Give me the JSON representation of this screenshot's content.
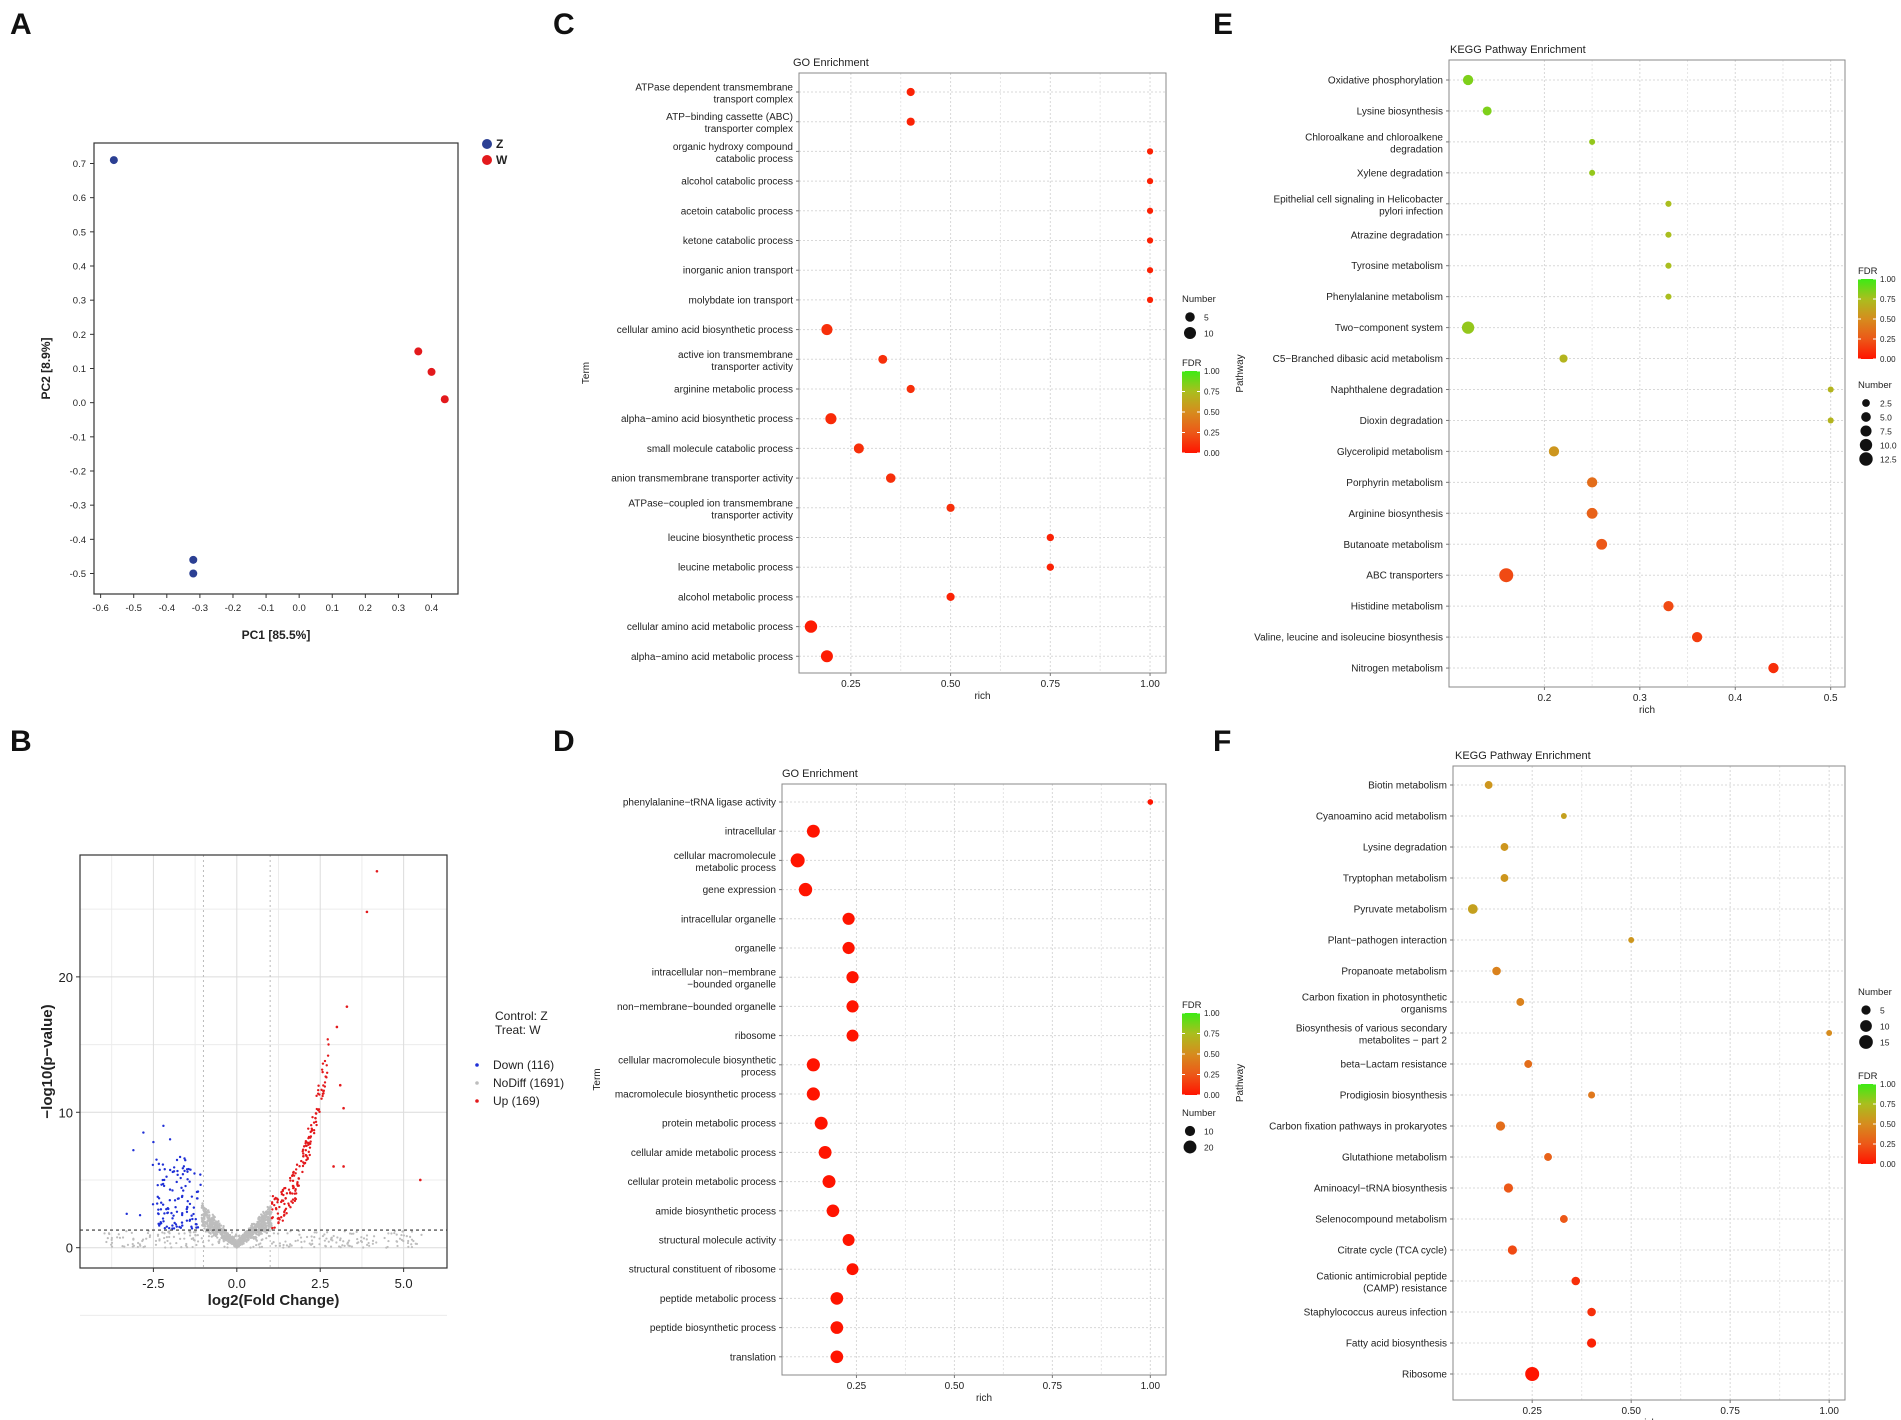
{
  "panels": {
    "A": "A",
    "B": "B",
    "C": "C",
    "D": "D",
    "E": "E",
    "F": "F"
  },
  "chart_data": [
    {
      "id": "A",
      "type": "scatter",
      "title": "",
      "xlabel": "PC1 [85.5%]",
      "ylabel": "PC2 [8.9%]",
      "xlim": [
        -0.62,
        0.48
      ],
      "ylim": [
        -0.56,
        0.76
      ],
      "xticks": [
        -0.6,
        -0.5,
        -0.4,
        -0.3,
        -0.2,
        -0.1,
        0.0,
        0.1,
        0.2,
        0.3,
        0.4
      ],
      "xtick_labels": [
        "-0.6",
        "-0.5",
        "-0.4",
        "-0.3",
        "-0.2",
        "-0.1",
        "0.0",
        "0.1",
        "0.2",
        "0.3",
        "0.4"
      ],
      "yticks": [
        -0.5,
        -0.4,
        -0.3,
        -0.2,
        -0.1,
        0.0,
        0.1,
        0.2,
        0.3,
        0.4,
        0.5,
        0.6,
        0.7
      ],
      "ytick_labels": [
        "-0.5",
        "-0.4",
        "-0.3",
        "-0.2",
        "-0.1",
        "0.0",
        "0.1",
        "0.2",
        "0.3",
        "0.4",
        "0.5",
        "0.6",
        "0.7"
      ],
      "legend": [
        {
          "name": "Z",
          "color": "#2b3f93"
        },
        {
          "name": "W",
          "color": "#e3191c"
        }
      ],
      "series": [
        {
          "name": "Z",
          "color": "#2b3f93",
          "points": [
            [
              -0.56,
              0.71
            ],
            [
              -0.32,
              -0.46
            ],
            [
              -0.32,
              -0.5
            ]
          ]
        },
        {
          "name": "W",
          "color": "#e3191c",
          "points": [
            [
              0.36,
              0.15
            ],
            [
              0.4,
              0.09
            ],
            [
              0.44,
              0.01
            ]
          ]
        }
      ]
    },
    {
      "id": "B",
      "type": "scatter",
      "subtype": "volcano",
      "title": "",
      "xlabel": "log2(Fold Change)",
      "ylabel": "−log10(p−value)",
      "xlim": [
        -4.7,
        6.3
      ],
      "ylim": [
        -1.5,
        29
      ],
      "xticks": [
        -2.5,
        0.0,
        2.5,
        5.0
      ],
      "xtick_labels": [
        "-2.5",
        "0.0",
        "2.5",
        "5.0"
      ],
      "yticks": [
        0,
        10,
        20
      ],
      "ytick_labels": [
        "0",
        "10",
        "20"
      ],
      "threshold_y": 1.3,
      "legend_header": [
        "Control: Z",
        "Treat:   W"
      ],
      "legend": [
        {
          "name": "Down (116)",
          "color": "#1f2fd6"
        },
        {
          "name": "NoDiff (1691)",
          "color": "#bdbdbd"
        },
        {
          "name": "Up (169)",
          "color": "#e3191c"
        }
      ]
    },
    {
      "id": "C",
      "type": "scatter",
      "subtype": "dotplot",
      "title": "GO Enrichment",
      "xlabel": "rich",
      "ylabel": "Term",
      "xlim": [
        0.12,
        1.04
      ],
      "xticks": [
        0.25,
        0.5,
        0.75,
        1.0
      ],
      "xtick_labels": [
        "0.25",
        "0.50",
        "0.75",
        "1.00"
      ],
      "size_legend_title": "Number",
      "size_legend": [
        {
          "label": "5",
          "value": 5
        },
        {
          "label": "10",
          "value": 10
        }
      ],
      "color_legend_title": "FDR",
      "color_legend_labels": [
        "1.00",
        "0.75",
        "0.50",
        "0.25",
        "0.00"
      ],
      "terms": [
        {
          "label": [
            "ATPase dependent transmembrane",
            "transport complex"
          ],
          "rich": 0.4,
          "number": 3,
          "fdr": 0.05
        },
        {
          "label": [
            "ATP−binding cassette (ABC)",
            "transporter complex"
          ],
          "rich": 0.4,
          "number": 3,
          "fdr": 0.05
        },
        {
          "label": [
            "organic hydroxy compound",
            "catabolic process"
          ],
          "rich": 1.0,
          "number": 1,
          "fdr": 0.05
        },
        {
          "label": [
            "alcohol catabolic process"
          ],
          "rich": 1.0,
          "number": 1,
          "fdr": 0.05
        },
        {
          "label": [
            "acetoin catabolic process"
          ],
          "rich": 1.0,
          "number": 1,
          "fdr": 0.05
        },
        {
          "label": [
            "ketone catabolic process"
          ],
          "rich": 1.0,
          "number": 1,
          "fdr": 0.05
        },
        {
          "label": [
            "inorganic anion transport"
          ],
          "rich": 1.0,
          "number": 1,
          "fdr": 0.05
        },
        {
          "label": [
            "molybdate ion transport"
          ],
          "rich": 1.0,
          "number": 1,
          "fdr": 0.05
        },
        {
          "label": [
            "cellular amino acid biosynthetic process"
          ],
          "rich": 0.19,
          "number": 8,
          "fdr": 0.1
        },
        {
          "label": [
            "active ion transmembrane",
            "transporter activity"
          ],
          "rich": 0.33,
          "number": 4,
          "fdr": 0.1
        },
        {
          "label": [
            "arginine metabolic process"
          ],
          "rich": 0.4,
          "number": 3,
          "fdr": 0.1
        },
        {
          "label": [
            "alpha−amino acid biosynthetic process"
          ],
          "rich": 0.2,
          "number": 8,
          "fdr": 0.08
        },
        {
          "label": [
            "small molecule catabolic process"
          ],
          "rich": 0.27,
          "number": 6,
          "fdr": 0.1
        },
        {
          "label": [
            "anion transmembrane transporter activity"
          ],
          "rich": 0.35,
          "number": 5,
          "fdr": 0.1
        },
        {
          "label": [
            "ATPase−coupled ion transmembrane",
            "transporter activity"
          ],
          "rich": 0.5,
          "number": 3,
          "fdr": 0.1
        },
        {
          "label": [
            "leucine biosynthetic process"
          ],
          "rich": 0.75,
          "number": 2,
          "fdr": 0.05
        },
        {
          "label": [
            "leucine metabolic process"
          ],
          "rich": 0.75,
          "number": 2,
          "fdr": 0.05
        },
        {
          "label": [
            "alcohol metabolic process"
          ],
          "rich": 0.5,
          "number": 3,
          "fdr": 0.05
        },
        {
          "label": [
            "cellular amino acid metabolic process"
          ],
          "rich": 0.15,
          "number": 11,
          "fdr": 0.03
        },
        {
          "label": [
            "alpha−amino acid metabolic process"
          ],
          "rich": 0.19,
          "number": 10,
          "fdr": 0.03
        }
      ]
    },
    {
      "id": "D",
      "type": "scatter",
      "subtype": "dotplot",
      "title": "GO Enrichment",
      "xlabel": "rich",
      "ylabel": "Term",
      "xlim": [
        0.06,
        1.04
      ],
      "xticks": [
        0.25,
        0.5,
        0.75,
        1.0
      ],
      "xtick_labels": [
        "0.25",
        "0.50",
        "0.75",
        "1.00"
      ],
      "size_legend_title": "Number",
      "size_legend": [
        {
          "label": "10",
          "value": 10
        },
        {
          "label": "20",
          "value": 20
        }
      ],
      "color_legend_title": "FDR",
      "color_legend_labels": [
        "1.00",
        "0.75",
        "0.50",
        "0.25",
        "0.00"
      ],
      "terms": [
        {
          "label": [
            "phenylalanine−tRNA ligase activity"
          ],
          "rich": 1.0,
          "number": 1,
          "fdr": 0.0
        },
        {
          "label": [
            "intracellular"
          ],
          "rich": 0.14,
          "number": 20,
          "fdr": 0.0
        },
        {
          "label": [
            "cellular macromolecule",
            "metabolic process"
          ],
          "rich": 0.1,
          "number": 25,
          "fdr": 0.0
        },
        {
          "label": [
            "gene expression"
          ],
          "rich": 0.12,
          "number": 22,
          "fdr": 0.0
        },
        {
          "label": [
            "intracellular organelle"
          ],
          "rich": 0.23,
          "number": 17,
          "fdr": 0.0
        },
        {
          "label": [
            "organelle"
          ],
          "rich": 0.23,
          "number": 17,
          "fdr": 0.0
        },
        {
          "label": [
            "intracellular non−membrane",
            "−bounded organelle"
          ],
          "rich": 0.24,
          "number": 17,
          "fdr": 0.0
        },
        {
          "label": [
            "non−membrane−bounded organelle"
          ],
          "rich": 0.24,
          "number": 17,
          "fdr": 0.0
        },
        {
          "label": [
            "ribosome"
          ],
          "rich": 0.24,
          "number": 16,
          "fdr": 0.0
        },
        {
          "label": [
            "cellular macromolecule biosynthetic",
            "process"
          ],
          "rich": 0.14,
          "number": 21,
          "fdr": 0.0
        },
        {
          "label": [
            "macromolecule biosynthetic process"
          ],
          "rich": 0.14,
          "number": 21,
          "fdr": 0.0
        },
        {
          "label": [
            "protein metabolic process"
          ],
          "rich": 0.16,
          "number": 20,
          "fdr": 0.0
        },
        {
          "label": [
            "cellular amide metabolic process"
          ],
          "rich": 0.17,
          "number": 20,
          "fdr": 0.0
        },
        {
          "label": [
            "cellular protein metabolic process"
          ],
          "rich": 0.18,
          "number": 20,
          "fdr": 0.0
        },
        {
          "label": [
            "amide biosynthetic process"
          ],
          "rich": 0.19,
          "number": 19,
          "fdr": 0.0
        },
        {
          "label": [
            "structural molecule activity"
          ],
          "rich": 0.23,
          "number": 16,
          "fdr": 0.0
        },
        {
          "label": [
            "structural constituent of ribosome"
          ],
          "rich": 0.24,
          "number": 16,
          "fdr": 0.0
        },
        {
          "label": [
            "peptide metabolic process"
          ],
          "rich": 0.2,
          "number": 19,
          "fdr": 0.0
        },
        {
          "label": [
            "peptide biosynthetic process"
          ],
          "rich": 0.2,
          "number": 19,
          "fdr": 0.0
        },
        {
          "label": [
            "translation"
          ],
          "rich": 0.2,
          "number": 19,
          "fdr": 0.0
        }
      ]
    },
    {
      "id": "E",
      "type": "scatter",
      "subtype": "dotplot",
      "title": "KEGG Pathway Enrichment",
      "xlabel": "rich",
      "ylabel": "Pathway",
      "xlim": [
        0.1,
        0.515
      ],
      "xticks": [
        0.2,
        0.3,
        0.4,
        0.5
      ],
      "xtick_labels": [
        "0.2",
        "0.3",
        "0.4",
        "0.5"
      ],
      "size_legend_title": "Number",
      "size_legend": [
        {
          "label": "2.5",
          "value": 2.5
        },
        {
          "label": "5.0",
          "value": 5
        },
        {
          "label": "7.5",
          "value": 7.5
        },
        {
          "label": "10.0",
          "value": 10
        },
        {
          "label": "12.5",
          "value": 12.5
        }
      ],
      "color_legend_title": "FDR",
      "color_legend_labels": [
        "1.00",
        "0.75",
        "0.50",
        "0.25",
        "0.00"
      ],
      "terms": [
        {
          "label": [
            "Oxidative phosphorylation"
          ],
          "rich": 0.12,
          "number": 6,
          "fdr": 0.85
        },
        {
          "label": [
            "Lysine biosynthesis"
          ],
          "rich": 0.14,
          "number": 4,
          "fdr": 0.85
        },
        {
          "label": [
            "Chloroalkane and chloroalkene",
            "degradation"
          ],
          "rich": 0.25,
          "number": 1,
          "fdr": 0.8
        },
        {
          "label": [
            "Xylene degradation"
          ],
          "rich": 0.25,
          "number": 1,
          "fdr": 0.8
        },
        {
          "label": [
            "Epithelial cell signaling in Helicobacter",
            "pylori infection"
          ],
          "rich": 0.33,
          "number": 1,
          "fdr": 0.75
        },
        {
          "label": [
            "Atrazine degradation"
          ],
          "rich": 0.33,
          "number": 1,
          "fdr": 0.75
        },
        {
          "label": [
            "Tyrosine metabolism"
          ],
          "rich": 0.33,
          "number": 1,
          "fdr": 0.75
        },
        {
          "label": [
            "Phenylalanine metabolism"
          ],
          "rich": 0.33,
          "number": 1,
          "fdr": 0.75
        },
        {
          "label": [
            "Two−component system"
          ],
          "rich": 0.12,
          "number": 10,
          "fdr": 0.8
        },
        {
          "label": [
            "C5−Branched dibasic acid metabolism"
          ],
          "rich": 0.22,
          "number": 3,
          "fdr": 0.7
        },
        {
          "label": [
            "Naphthalene degradation"
          ],
          "rich": 0.5,
          "number": 1,
          "fdr": 0.7
        },
        {
          "label": [
            "Dioxin degradation"
          ],
          "rich": 0.5,
          "number": 1,
          "fdr": 0.7
        },
        {
          "label": [
            "Glycerolipid metabolism"
          ],
          "rich": 0.21,
          "number": 6,
          "fdr": 0.55
        },
        {
          "label": [
            "Porphyrin metabolism"
          ],
          "rich": 0.25,
          "number": 6,
          "fdr": 0.35
        },
        {
          "label": [
            "Arginine biosynthesis"
          ],
          "rich": 0.25,
          "number": 7,
          "fdr": 0.3
        },
        {
          "label": [
            "Butanoate metabolism"
          ],
          "rich": 0.26,
          "number": 7,
          "fdr": 0.25
        },
        {
          "label": [
            "ABC transporters"
          ],
          "rich": 0.16,
          "number": 14,
          "fdr": 0.2
        },
        {
          "label": [
            "Histidine metabolism"
          ],
          "rich": 0.33,
          "number": 6,
          "fdr": 0.2
        },
        {
          "label": [
            "Valine, leucine and isoleucine biosynthesis"
          ],
          "rich": 0.36,
          "number": 6,
          "fdr": 0.15
        },
        {
          "label": [
            "Nitrogen metabolism"
          ],
          "rich": 0.44,
          "number": 6,
          "fdr": 0.1
        }
      ]
    },
    {
      "id": "F",
      "type": "scatter",
      "subtype": "dotplot",
      "title": "KEGG Pathway Enrichment",
      "xlabel": "rich",
      "ylabel": "Pathway",
      "xlim": [
        0.05,
        1.04
      ],
      "xticks": [
        0.25,
        0.5,
        0.75,
        1.0
      ],
      "xtick_labels": [
        "0.25",
        "0.50",
        "0.75",
        "1.00"
      ],
      "size_legend_title": "Number",
      "size_legend": [
        {
          "label": "5",
          "value": 5
        },
        {
          "label": "10",
          "value": 10
        },
        {
          "label": "15",
          "value": 15
        }
      ],
      "color_legend_title": "FDR",
      "color_legend_labels": [
        "1.00",
        "0.75",
        "0.50",
        "0.25",
        "0.00"
      ],
      "terms": [
        {
          "label": [
            "Biotin metabolism"
          ],
          "rich": 0.14,
          "number": 3,
          "fdr": 0.55
        },
        {
          "label": [
            "Cyanoamino acid metabolism"
          ],
          "rich": 0.33,
          "number": 1,
          "fdr": 0.6
        },
        {
          "label": [
            "Lysine degradation"
          ],
          "rich": 0.18,
          "number": 3,
          "fdr": 0.55
        },
        {
          "label": [
            "Tryptophan metabolism"
          ],
          "rich": 0.18,
          "number": 3,
          "fdr": 0.55
        },
        {
          "label": [
            "Pyruvate metabolism"
          ],
          "rich": 0.1,
          "number": 6,
          "fdr": 0.6
        },
        {
          "label": [
            "Plant−pathogen interaction"
          ],
          "rich": 0.5,
          "number": 1,
          "fdr": 0.55
        },
        {
          "label": [
            "Propanoate metabolism"
          ],
          "rich": 0.16,
          "number": 4,
          "fdr": 0.45
        },
        {
          "label": [
            "Carbon fixation in photosynthetic",
            "organisms"
          ],
          "rich": 0.22,
          "number": 3,
          "fdr": 0.45
        },
        {
          "label": [
            "Biosynthesis of various secondary",
            "metabolites − part 2"
          ],
          "rich": 1.0,
          "number": 1,
          "fdr": 0.5
        },
        {
          "label": [
            "beta−Lactam resistance"
          ],
          "rich": 0.24,
          "number": 3,
          "fdr": 0.35
        },
        {
          "label": [
            "Prodigiosin biosynthesis"
          ],
          "rich": 0.4,
          "number": 2,
          "fdr": 0.4
        },
        {
          "label": [
            "Carbon fixation pathways in prokaryotes"
          ],
          "rich": 0.17,
          "number": 5,
          "fdr": 0.35
        },
        {
          "label": [
            "Glutathione metabolism"
          ],
          "rich": 0.29,
          "number": 3,
          "fdr": 0.3
        },
        {
          "label": [
            "Aminoacyl−tRNA biosynthesis"
          ],
          "rich": 0.19,
          "number": 5,
          "fdr": 0.25
        },
        {
          "label": [
            "Selenocompound metabolism"
          ],
          "rich": 0.33,
          "number": 3,
          "fdr": 0.25
        },
        {
          "label": [
            "Citrate cycle (TCA cycle)"
          ],
          "rich": 0.2,
          "number": 5,
          "fdr": 0.2
        },
        {
          "label": [
            "Cationic antimicrobial peptide",
            "(CAMP) resistance"
          ],
          "rich": 0.36,
          "number": 4,
          "fdr": 0.1
        },
        {
          "label": [
            "Staphylococcus aureus infection"
          ],
          "rich": 0.4,
          "number": 4,
          "fdr": 0.1
        },
        {
          "label": [
            "Fatty acid biosynthesis"
          ],
          "rich": 0.4,
          "number": 5,
          "fdr": 0.05
        },
        {
          "label": [
            "Ribosome"
          ],
          "rich": 0.25,
          "number": 16,
          "fdr": 0.0
        }
      ]
    }
  ]
}
